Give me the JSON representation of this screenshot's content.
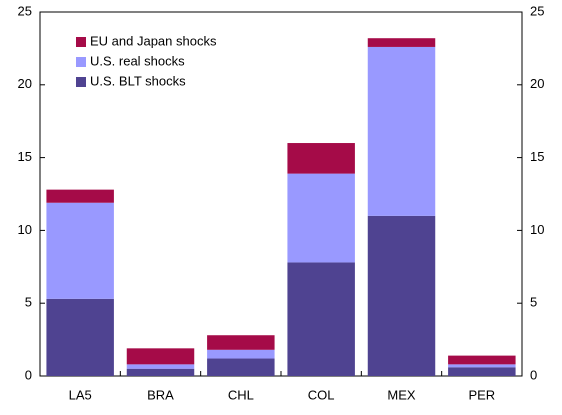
{
  "chart_data": {
    "type": "stacked-bar",
    "categories": [
      "LA5",
      "BRA",
      "CHL",
      "COL",
      "MEX",
      "PER"
    ],
    "series": [
      {
        "name": "U.S. BLT shocks",
        "color": "#4f4391",
        "values": [
          5.3,
          0.5,
          1.2,
          7.8,
          11.0,
          0.6
        ]
      },
      {
        "name": "U.S. real  shocks",
        "color": "#9999ff",
        "values": [
          6.6,
          0.3,
          0.6,
          6.1,
          11.6,
          0.2
        ]
      },
      {
        "name": "EU and Japan shocks",
        "color": "#a50b48",
        "values": [
          0.9,
          1.1,
          1.0,
          2.1,
          0.6,
          0.6
        ]
      }
    ],
    "ylim": [
      0,
      25
    ],
    "yticks": [
      0,
      5,
      10,
      15,
      20,
      25
    ],
    "y2lim": [
      0,
      25
    ],
    "y2ticks": [
      0,
      5,
      10,
      15,
      20,
      25
    ],
    "legend": "upper-left"
  }
}
